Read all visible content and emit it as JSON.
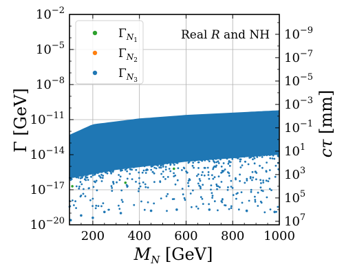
{
  "chart_data": {
    "type": "scatter",
    "xlabel": "M_N [GeV]",
    "ylabel": "Γ [GeV]",
    "y2label": "cτ [mm]",
    "xlim": [
      100,
      1000
    ],
    "ylim_log10": [
      -20,
      -2
    ],
    "y_scale": "log",
    "y2_scale": "log",
    "grid": true,
    "legend_position": "top-left",
    "annotation": "Real R and NH",
    "x_ticks": [
      200,
      400,
      600,
      800,
      1000
    ],
    "x_tick_labels": [
      "200",
      "400",
      "600",
      "800",
      "1000"
    ],
    "y_ticks_exp": [
      -2,
      -5,
      -8,
      -11,
      -14,
      -17,
      -20
    ],
    "y2_ticks_exp": [
      -9,
      -7,
      -5,
      -3,
      -1,
      1,
      3,
      5,
      7
    ],
    "y2_signs": [
      "−",
      "−",
      "−",
      "−",
      "−",
      "",
      "",
      "",
      ""
    ],
    "series": [
      {
        "name": "Γ_{N_1}",
        "color": "#2ca02c",
        "upper_edge_log10": [
          [
            100,
            -12.3
          ],
          [
            200,
            -11.4
          ],
          [
            400,
            -10.9
          ],
          [
            600,
            -10.6
          ],
          [
            800,
            -10.4
          ],
          [
            1000,
            -10.2
          ]
        ],
        "lower_cloud_log10": [
          [
            110,
            -16.0
          ],
          [
            300,
            -15.3
          ],
          [
            600,
            -14.6
          ],
          [
            1000,
            -14.0
          ]
        ],
        "outliers": [
          [
            112,
            -16.7
          ],
          [
            340,
            -16.4
          ],
          [
            548,
            -15.2
          ]
        ]
      },
      {
        "name": "Γ_{N_2}",
        "color": "#ff7f0e",
        "upper_edge_log10": [
          [
            100,
            -12.3
          ],
          [
            200,
            -11.4
          ],
          [
            400,
            -10.9
          ],
          [
            600,
            -10.6
          ],
          [
            800,
            -10.4
          ],
          [
            1000,
            -10.2
          ]
        ],
        "lower_cloud_log10": [
          [
            110,
            -16.0
          ],
          [
            300,
            -15.3
          ],
          [
            600,
            -14.6
          ],
          [
            1000,
            -14.0
          ]
        ],
        "outliers": []
      },
      {
        "name": "Γ_{N_3}",
        "color": "#1f77b4",
        "upper_edge_log10": [
          [
            100,
            -12.3
          ],
          [
            200,
            -11.4
          ],
          [
            400,
            -10.9
          ],
          [
            600,
            -10.6
          ],
          [
            800,
            -10.4
          ],
          [
            1000,
            -10.2
          ]
        ],
        "lower_cloud_log10": [
          [
            110,
            -16.0
          ],
          [
            300,
            -15.3
          ],
          [
            600,
            -14.6
          ],
          [
            1000,
            -14.0
          ]
        ],
        "outliers": [
          [
            105,
            -19.6
          ],
          [
            150,
            -19.2
          ],
          [
            200,
            -19.4
          ],
          [
            250,
            -18.9
          ],
          [
            320,
            -19.0
          ],
          [
            450,
            -18.8
          ],
          [
            560,
            -18.7
          ],
          [
            700,
            -18.7
          ],
          [
            860,
            -18.8
          ],
          [
            980,
            -18.9
          ]
        ]
      }
    ]
  }
}
